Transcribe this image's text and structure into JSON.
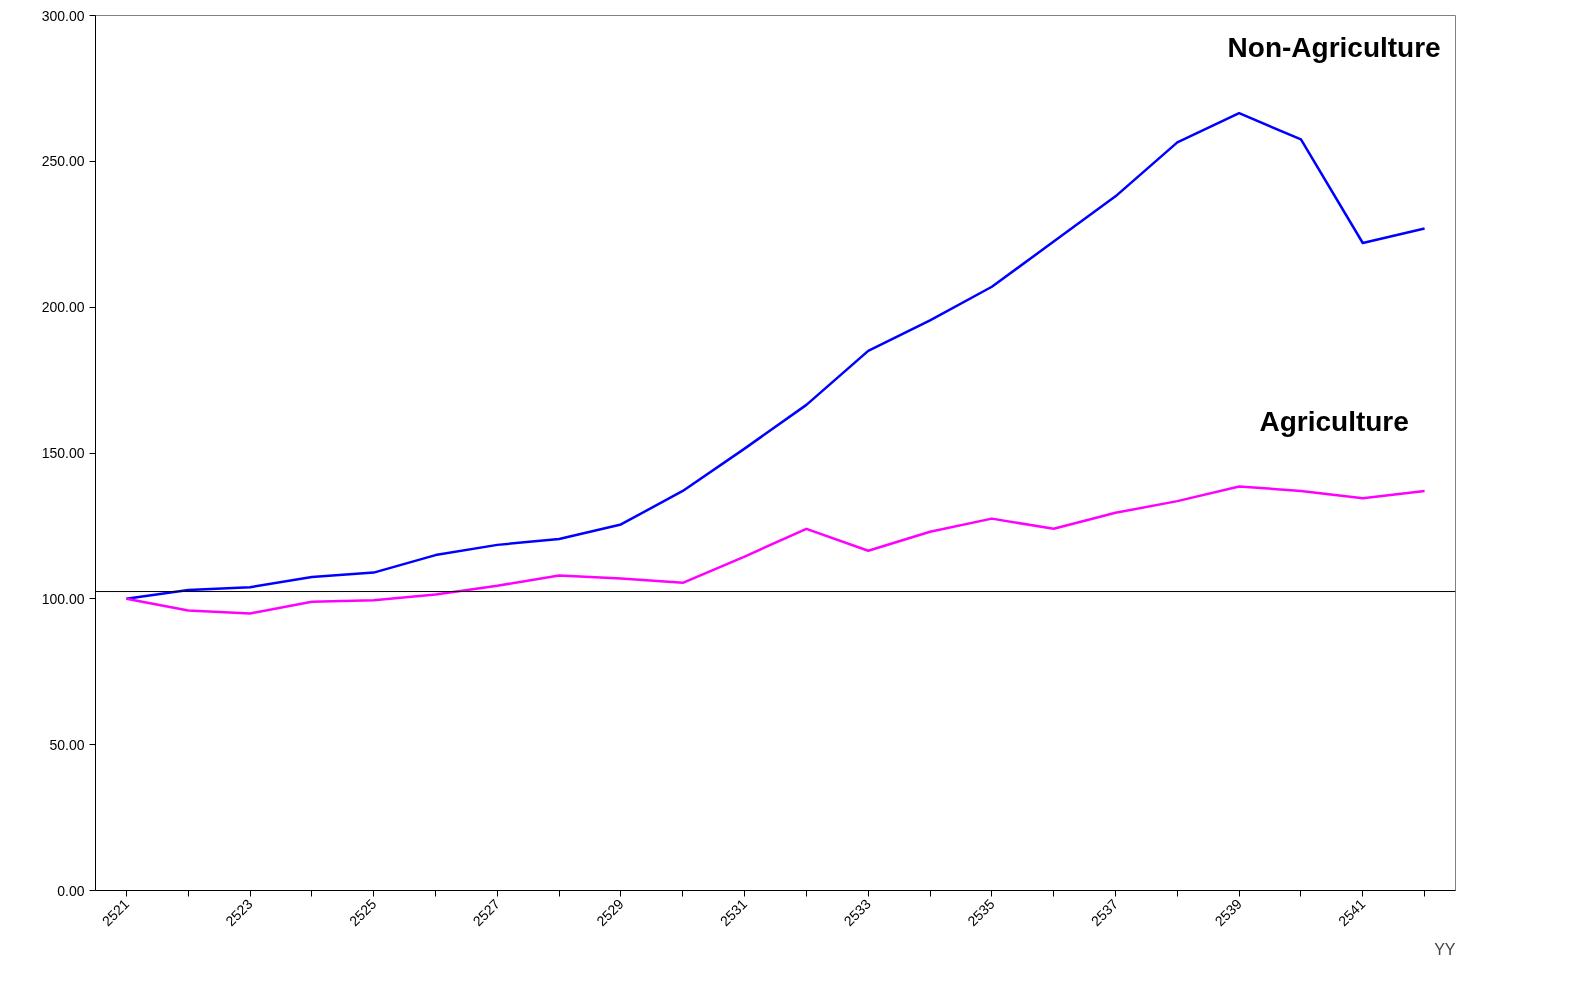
{
  "chart_data": {
    "type": "line",
    "xlabel": "YY",
    "categories": [
      "2521",
      null,
      "2523",
      null,
      "2525",
      null,
      "2527",
      null,
      "2529",
      null,
      "2531",
      null,
      "2533",
      null,
      "2535",
      null,
      "2537",
      null,
      "2539",
      null,
      "2541",
      null
    ],
    "series": [
      {
        "name": "Non-Agriculture",
        "color": "#0000ff",
        "values": [
          100,
          103,
          104,
          107.5,
          109,
          115,
          118.5,
          120.5,
          125.5,
          137,
          151.5,
          166.5,
          185,
          195.5,
          207,
          222.5,
          238,
          256.5,
          266.5,
          257.5,
          222,
          227
        ]
      },
      {
        "name": "Agriculture",
        "color": "#ff00ff",
        "values": [
          100,
          96,
          95,
          99,
          99.5,
          101.5,
          104.5,
          108,
          107,
          105.5,
          114.5,
          124,
          116.5,
          123,
          127.5,
          124,
          129.5,
          133.5,
          138.5,
          137,
          134.5,
          137
        ]
      }
    ],
    "ylim": [
      0,
      300
    ],
    "yticks": [
      {
        "value": 0,
        "label": "0.00"
      },
      {
        "value": 50,
        "label": "50.00"
      },
      {
        "value": 100,
        "label": "100.00"
      },
      {
        "value": 150,
        "label": "150.00"
      },
      {
        "value": 200,
        "label": "200.00"
      },
      {
        "value": 250,
        "label": "250.00"
      },
      {
        "value": 300,
        "label": "300.00"
      }
    ],
    "ref_lines": [
      {
        "axis": "y",
        "value": 102.5,
        "color": "#000000",
        "line_style": "solid"
      }
    ],
    "grid": false,
    "marker": "none",
    "line_style": "solid"
  }
}
